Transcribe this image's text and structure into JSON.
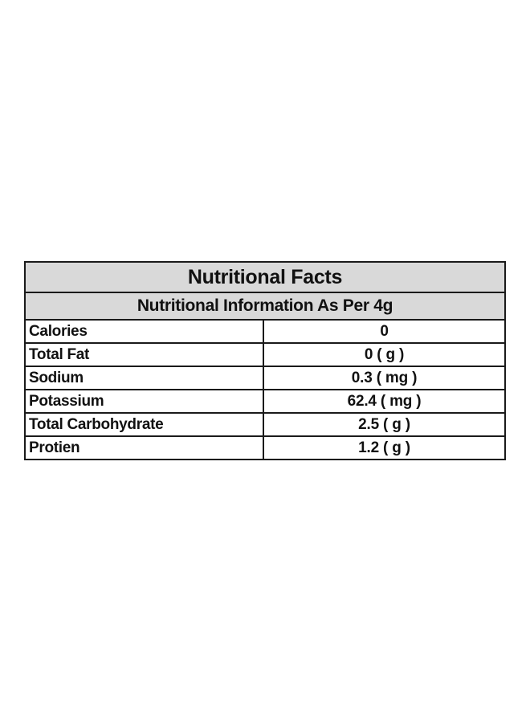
{
  "table": {
    "title": "Nutritional Facts",
    "subtitle": "Nutritional Information As Per 4g",
    "rows": [
      {
        "label": "Calories",
        "value": "0"
      },
      {
        "label": "Total Fat",
        "value": "0 ( g )"
      },
      {
        "label": "Sodium",
        "value": "0.3 ( mg )"
      },
      {
        "label": "Potassium",
        "value": "62.4 ( mg )"
      },
      {
        "label": "Total Carbohydrate",
        "value": "2.5 ( g )"
      },
      {
        "label": "Protien",
        "value": "1.2 ( g )"
      }
    ],
    "header_background": "#d9d9d9",
    "border_color": "#1a1a1a"
  }
}
